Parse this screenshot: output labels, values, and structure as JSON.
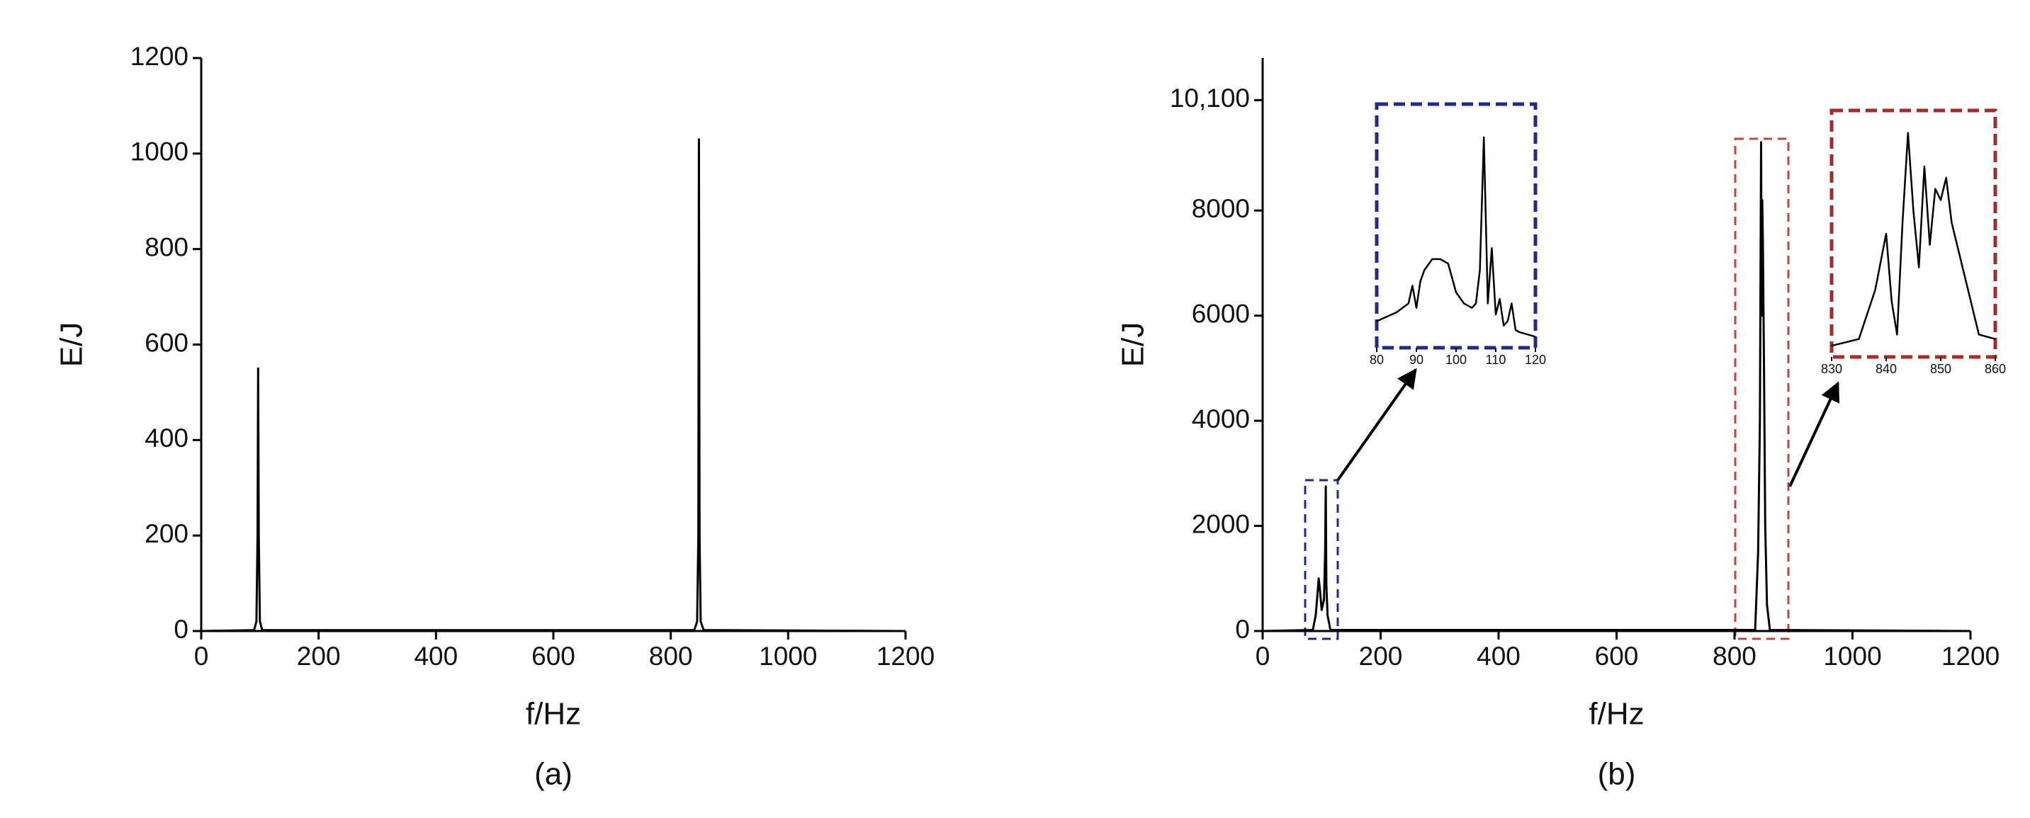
{
  "chart_data": [
    {
      "type": "line",
      "caption": "(a)",
      "x_label": "f/Hz",
      "y_label": "E/J",
      "color": "#000000",
      "x": [
        0,
        90,
        94,
        96,
        97,
        98,
        100,
        104,
        840,
        845,
        847,
        848,
        849,
        851,
        856,
        1200
      ],
      "values": [
        0,
        2,
        20,
        200,
        550,
        200,
        20,
        2,
        2,
        20,
        200,
        1030,
        200,
        20,
        2,
        0
      ],
      "xlim": [
        0,
        1200
      ],
      "xticks": [
        0,
        200,
        400,
        600,
        800,
        1000,
        1200
      ],
      "ylim": [
        0,
        1200
      ],
      "yticks": [
        0,
        200,
        400,
        600,
        800,
        1000,
        1200
      ]
    },
    {
      "type": "line",
      "caption": "(b)",
      "x_label": "f/Hz",
      "y_label": "E/J",
      "color": "#000000",
      "x": [
        0,
        85,
        90,
        93,
        95,
        97,
        100,
        104,
        106,
        107,
        108,
        110,
        115,
        835,
        840,
        843,
        845,
        846,
        847,
        848,
        850,
        852,
        855,
        860,
        1200
      ],
      "values": [
        0,
        20,
        300,
        700,
        1000,
        800,
        400,
        600,
        1500,
        2750,
        900,
        300,
        20,
        20,
        1500,
        4000,
        9300,
        6000,
        8200,
        7400,
        5000,
        2000,
        500,
        20,
        0
      ],
      "xlim": [
        0,
        1200
      ],
      "xticks": [
        0,
        200,
        400,
        600,
        800,
        1000,
        1200
      ],
      "ylim": [
        0,
        10900
      ],
      "yticks": [
        0,
        2000,
        4000,
        6000,
        8000,
        {
          "value": 10100,
          "label": "10,100"
        }
      ]
    },
    {
      "type": "line",
      "color": "#000000",
      "frame_color": "#1f2a8a",
      "x": [
        80,
        85,
        88,
        89,
        90,
        91,
        92,
        94,
        96,
        98,
        100,
        102,
        104,
        105,
        106,
        107,
        108,
        109,
        110,
        111,
        112,
        113,
        114,
        115,
        116,
        118,
        120
      ],
      "values": [
        12,
        16,
        20,
        28,
        18,
        30,
        35,
        40,
        40,
        38,
        25,
        20,
        18,
        20,
        35,
        95,
        20,
        45,
        15,
        22,
        10,
        12,
        20,
        8,
        7,
        6,
        5
      ],
      "xlim": [
        80,
        120
      ],
      "xticks": [
        80,
        90,
        100,
        110,
        120
      ],
      "ylim": [
        0,
        110
      ]
    },
    {
      "type": "line",
      "color": "#000000",
      "frame_color": "#a52a2a",
      "x": [
        830,
        835,
        838,
        840,
        841,
        842,
        843,
        844,
        845,
        846,
        847,
        848,
        849,
        850,
        851,
        852,
        853,
        855,
        857,
        860
      ],
      "values": [
        5,
        8,
        30,
        55,
        25,
        10,
        60,
        100,
        65,
        40,
        85,
        50,
        75,
        70,
        80,
        60,
        50,
        30,
        10,
        8
      ],
      "xlim": [
        830,
        860
      ],
      "xticks": [
        830,
        840,
        850,
        860
      ],
      "ylim": [
        0,
        110
      ]
    }
  ]
}
